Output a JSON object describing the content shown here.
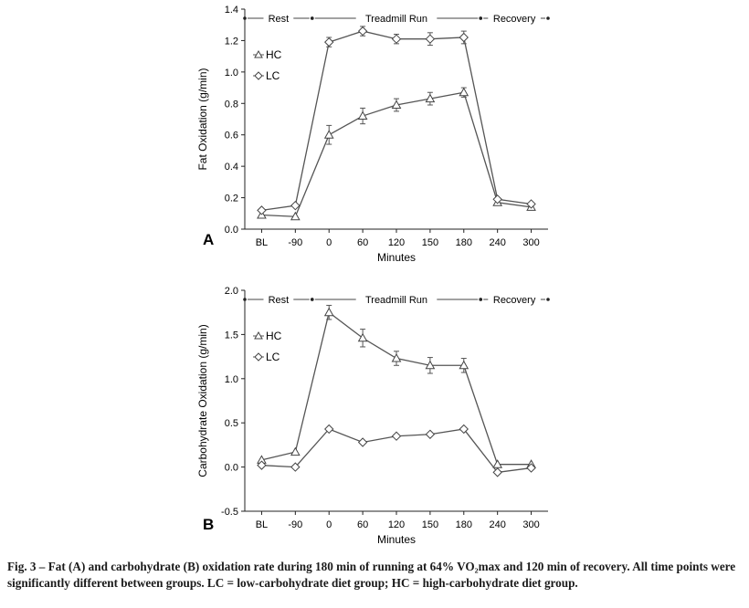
{
  "chart_data": [
    {
      "panel": "A",
      "type": "line",
      "ylabel": "Fat Oxidation (g/min)",
      "xlabel": "Minutes",
      "categories": [
        "BL",
        "-90",
        "0",
        "60",
        "120",
        "150",
        "180",
        "240",
        "300"
      ],
      "ylim": [
        0.0,
        1.4
      ],
      "yticks": [
        "0.0",
        "0.2",
        "0.4",
        "0.6",
        "0.8",
        "1.0",
        "1.2",
        "1.4"
      ],
      "phases": [
        {
          "label": "Rest",
          "from": -0.5,
          "to": 1.5
        },
        {
          "label": "Treadmill Run",
          "from": 1.5,
          "to": 6.5
        },
        {
          "label": "Recovery",
          "from": 6.5,
          "to": 8.5
        }
      ],
      "legend_placement": "upper-left",
      "series": [
        {
          "name": "HC",
          "marker": "triangle",
          "values": [
            0.09,
            0.08,
            0.6,
            0.72,
            0.79,
            0.83,
            0.87,
            0.17,
            0.14
          ],
          "errors": [
            0.0,
            0.0,
            0.06,
            0.05,
            0.04,
            0.04,
            0.03,
            0.0,
            0.0
          ]
        },
        {
          "name": "LC",
          "marker": "diamond",
          "values": [
            0.12,
            0.15,
            1.19,
            1.26,
            1.21,
            1.21,
            1.22,
            0.19,
            0.16
          ],
          "errors": [
            0.0,
            0.0,
            0.03,
            0.03,
            0.03,
            0.04,
            0.04,
            0.0,
            0.0
          ]
        }
      ]
    },
    {
      "panel": "B",
      "type": "line",
      "ylabel": "Carbohydrate Oxidation (g/min)",
      "xlabel": "Minutes",
      "categories": [
        "BL",
        "-90",
        "0",
        "60",
        "120",
        "150",
        "180",
        "240",
        "300"
      ],
      "ylim": [
        -0.5,
        2.0
      ],
      "yticks": [
        "-0.5",
        "0.0",
        "0.5",
        "1.0",
        "1.5",
        "2.0"
      ],
      "phases": [
        {
          "label": "Rest",
          "from": -0.5,
          "to": 1.5
        },
        {
          "label": "Treadmill Run",
          "from": 1.5,
          "to": 6.5
        },
        {
          "label": "Recovery",
          "from": 6.5,
          "to": 8.5
        }
      ],
      "legend_placement": "upper-left",
      "series": [
        {
          "name": "HC",
          "marker": "triangle",
          "values": [
            0.08,
            0.17,
            1.75,
            1.46,
            1.23,
            1.15,
            1.15,
            0.03,
            0.03
          ],
          "errors": [
            0.0,
            0.0,
            0.08,
            0.1,
            0.08,
            0.09,
            0.08,
            0.0,
            0.0
          ]
        },
        {
          "name": "LC",
          "marker": "diamond",
          "values": [
            0.02,
            0.0,
            0.43,
            0.28,
            0.35,
            0.37,
            0.43,
            -0.06,
            -0.01
          ],
          "errors": [
            0.0,
            0.0,
            0.0,
            0.0,
            0.0,
            0.0,
            0.0,
            0.0,
            0.0
          ]
        }
      ]
    }
  ],
  "caption": {
    "lead": "Fig. 3 – ",
    "text": "Fat (A) and carbohydrate (B) oxidation rate during 180 min of running at 64% VO₂max and 120 min of recovery. All time points were significantly different between groups. LC = low-carbohydrate diet group; HC = high-carbohydrate diet group."
  }
}
